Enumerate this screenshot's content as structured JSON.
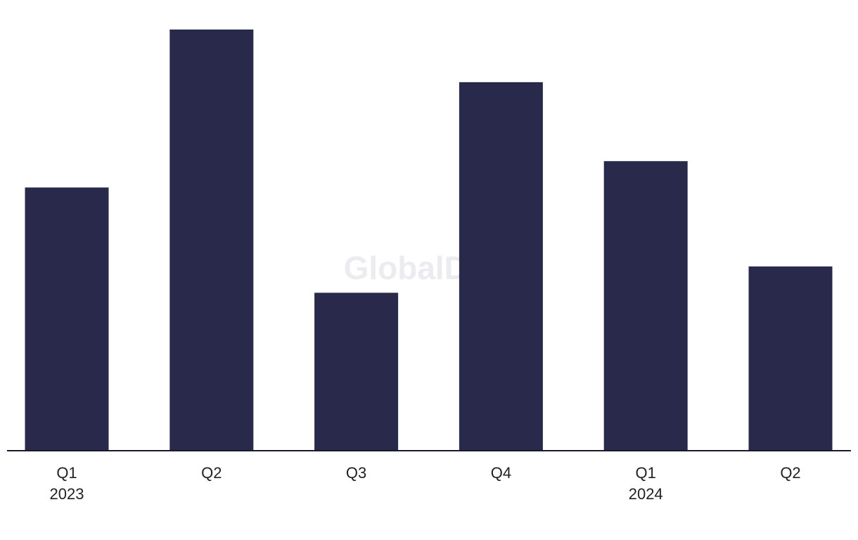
{
  "chart_data": {
    "type": "bar",
    "watermark": "GlobalData",
    "categories": [
      "Q1",
      "Q2",
      "Q3",
      "Q4",
      "Q1",
      "Q2"
    ],
    "year_labels": [
      "2023",
      null,
      null,
      null,
      "2024",
      null
    ],
    "values": [
      10,
      16,
      6,
      14,
      11,
      7
    ],
    "color": "#29294b",
    "ylim": [
      0,
      16
    ]
  }
}
